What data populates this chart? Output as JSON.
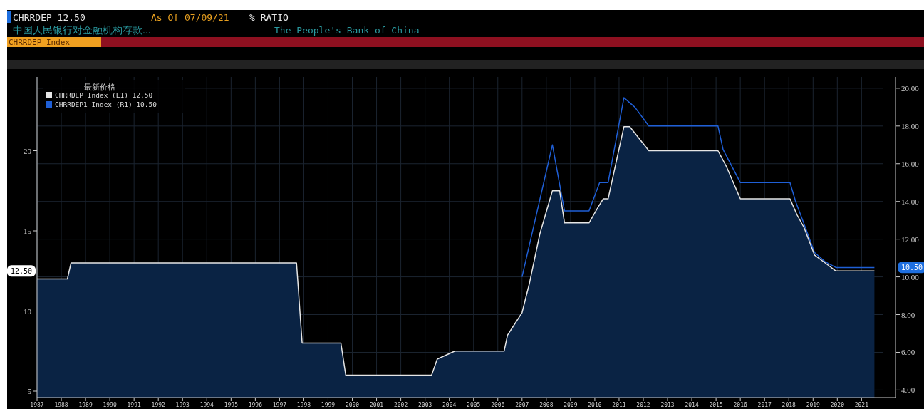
{
  "chart_data": {
    "type": "area",
    "title": "CHRRDEP   12.50",
    "subtitle": "中国人民银行对金融机构存款...",
    "annotations": [
      "As Of 07/09/21",
      "% RATIO",
      "The People's Bank of China",
      "CHRRDEP Index",
      "12.50",
      "10.50"
    ],
    "legend_title": "最新价格",
    "legend": "top left",
    "grid": true,
    "xlim": [
      1987,
      2021.9
    ],
    "xticks": [
      1987,
      1988,
      1989,
      1990,
      1991,
      1992,
      1993,
      1994,
      1995,
      1996,
      1997,
      1998,
      1999,
      2000,
      2001,
      2002,
      2003,
      2004,
      2005,
      2006,
      2007,
      2008,
      2009,
      2010,
      2011,
      2012,
      2013,
      2014,
      2015,
      2016,
      2017,
      2018,
      2019,
      2020,
      2021
    ],
    "ylim": [
      4.6,
      24.6
    ],
    "yticks": [
      5,
      10,
      15,
      20
    ],
    "y2lim": [
      3.6,
      20.6
    ],
    "y2ticks": [
      {
        "value": 4,
        "label": "4.00"
      },
      {
        "value": 6,
        "label": "6.00"
      },
      {
        "value": 8,
        "label": "8.00"
      },
      {
        "value": 10,
        "label": "10.00"
      },
      {
        "value": 12,
        "label": "12.00"
      },
      {
        "value": 14,
        "label": "14.00"
      },
      {
        "value": 16,
        "label": "16.00"
      },
      {
        "value": 18,
        "label": "18.00"
      },
      {
        "value": 20,
        "label": "20.00"
      }
    ],
    "series": [
      {
        "name": "CHRRDEP Index (L1)  12.50",
        "color": "#e6e6e6",
        "x": [
          1987.0,
          1988.25,
          1988.4,
          1997.7,
          1997.93,
          1999.53,
          1999.73,
          2003.27,
          2003.5,
          2004.23,
          2006.26,
          2006.4,
          2006.7,
          2007.0,
          2007.3,
          2007.73,
          2008.25,
          2008.55,
          2008.75,
          2009.76,
          2010.14,
          2010.35,
          2010.55,
          2011.2,
          2011.44,
          2012.23,
          2015.08,
          2015.43,
          2016.0,
          2018.05,
          2018.34,
          2018.63,
          2019.06,
          2019.5,
          2019.94,
          2021.53
        ],
        "values": [
          12,
          12,
          13,
          13,
          8,
          8,
          6,
          6,
          7,
          7.5,
          7.5,
          8.5,
          9.2,
          9.9,
          11.7,
          14.8,
          17.5,
          17.5,
          15.5,
          15.5,
          16.5,
          17,
          17,
          21.5,
          21.5,
          20,
          20,
          19,
          17,
          17,
          16,
          15.2,
          13.5,
          13,
          12.5,
          12.5
        ]
      },
      {
        "name": "CHRRDEP1 Index (R1)  10.50",
        "type": "line",
        "axis": "y2",
        "color": "#1f5fd6",
        "x": [
          2007.0,
          2008.25,
          2008.75,
          2009.76,
          2010.2,
          2010.55,
          2011.2,
          2011.65,
          2012.23,
          2015.08,
          2015.29,
          2016.0,
          2018.05,
          2018.28,
          2018.63,
          2019.06,
          2019.5,
          2019.94,
          2021.53
        ],
        "values": [
          10,
          17,
          13.5,
          13.5,
          15,
          15,
          19.5,
          19,
          18,
          18,
          16.75,
          15,
          15,
          14,
          12.8,
          11.3,
          10.8,
          10.5,
          10.5
        ]
      }
    ]
  }
}
